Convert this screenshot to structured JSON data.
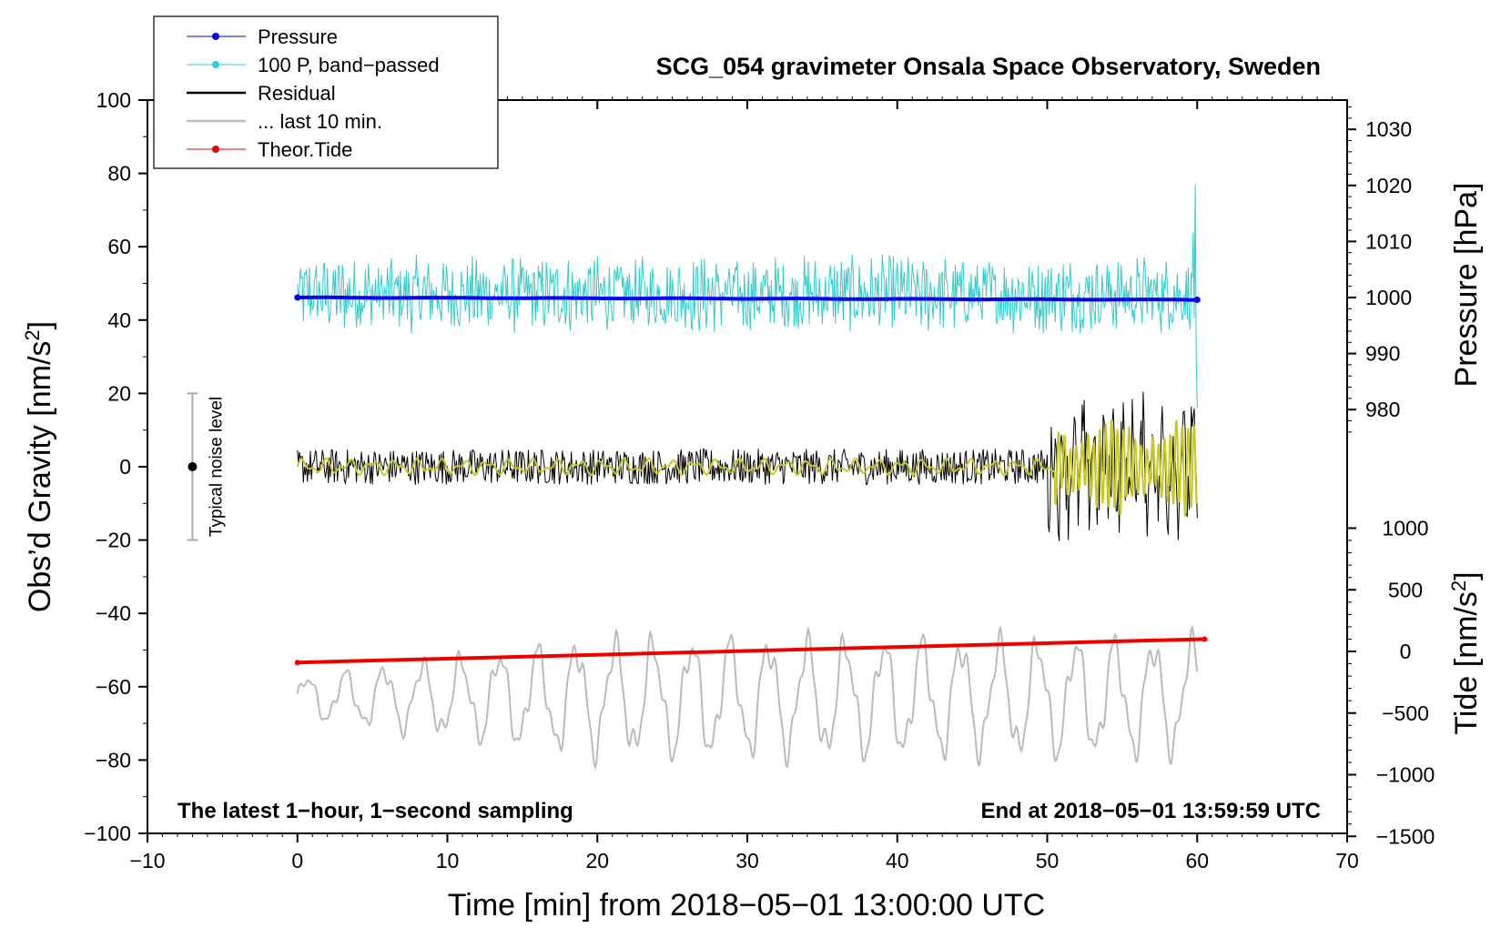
{
  "chart_data": {
    "type": "line",
    "title": "SCG_054 gravimeter Onsala Space Observatory, Sweden",
    "xlabel": "Time [min] from 2018−05−01 13:00:00 UTC",
    "ylabel_left": "Obs’d Gravity [nm/s2]",
    "ylabel_right_top": "Pressure [hPa]",
    "ylabel_right_bottom": "Tide [nm/s2]",
    "xlim": [
      -10,
      70
    ],
    "ylim_left": [
      -100,
      100
    ],
    "pressure_axis_range": [
      975,
      1035
    ],
    "tide_axis_range": [
      -1500,
      1000
    ],
    "x_ticks": [
      "−10",
      "0",
      "10",
      "20",
      "30",
      "40",
      "50",
      "60",
      "70"
    ],
    "y_left_ticks": [
      "100",
      "80",
      "60",
      "40",
      "20",
      "0",
      "−20",
      "−40",
      "−60",
      "−80",
      "−100"
    ],
    "y_pressure_ticks": [
      "1030",
      "1020",
      "1010",
      "1000",
      "990",
      "980"
    ],
    "y_tide_ticks": [
      "1000",
      "500",
      "0",
      "−500",
      "−1000",
      "−1500"
    ],
    "legend": [
      {
        "label": "Pressure",
        "color": "#0000ee",
        "marker": true
      },
      {
        "label": "100 P, band−passed",
        "color": "#33cccc",
        "marker": true
      },
      {
        "label": "Residual",
        "color": "#000000",
        "marker": false
      },
      {
        "label": "... last 10 min.",
        "color": "#bbbbbb",
        "marker": false
      },
      {
        "label": "Theor.Tide",
        "color": "#ee0000",
        "marker": true
      }
    ],
    "noise_label": "Typical noise level",
    "noise_bar": {
      "x": -7,
      "center": 0,
      "halfwidth": 20
    },
    "annotation_left": "The latest 1−hour, 1−second sampling",
    "annotation_right": "End at 2018−05−01 13:59:59 UTC",
    "series": [
      {
        "name": "Pressure",
        "axis": "pressure",
        "color": "#0000ee",
        "x_range": [
          0,
          60
        ],
        "start": 1000.0,
        "end": 999.6
      },
      {
        "name": "100 P, band−passed",
        "axis": "left",
        "color": "#33cccc",
        "x_range": [
          0,
          60
        ],
        "baseline": 47,
        "spread": 14,
        "end_spike": 77
      },
      {
        "name": "Residual",
        "axis": "left",
        "color": "#000000",
        "x_range": [
          0,
          60
        ],
        "baseline": 0,
        "spread": 7,
        "late_spread": 17
      },
      {
        "name": "Residual filtered",
        "axis": "left",
        "color": "#c8c820",
        "x_range": [
          0,
          60
        ],
        "baseline": 0,
        "late_amplitude": 12
      },
      {
        "name": "... last 10 min.",
        "axis": "left",
        "color": "#bbbbbb",
        "x_range": [
          0,
          60
        ],
        "baseline": -63,
        "amplitude": 14
      },
      {
        "name": "Theor.Tide",
        "axis": "tide",
        "color": "#ee0000",
        "x_range": [
          0,
          60.5
        ],
        "start": -90,
        "end": 100
      }
    ]
  },
  "colors": {
    "pressure": "#0000ee",
    "bandpassed": "#33cccc",
    "residual": "#000000",
    "filtered": "#c8c820",
    "last10": "#bbbbbb",
    "tide": "#ee0000"
  }
}
